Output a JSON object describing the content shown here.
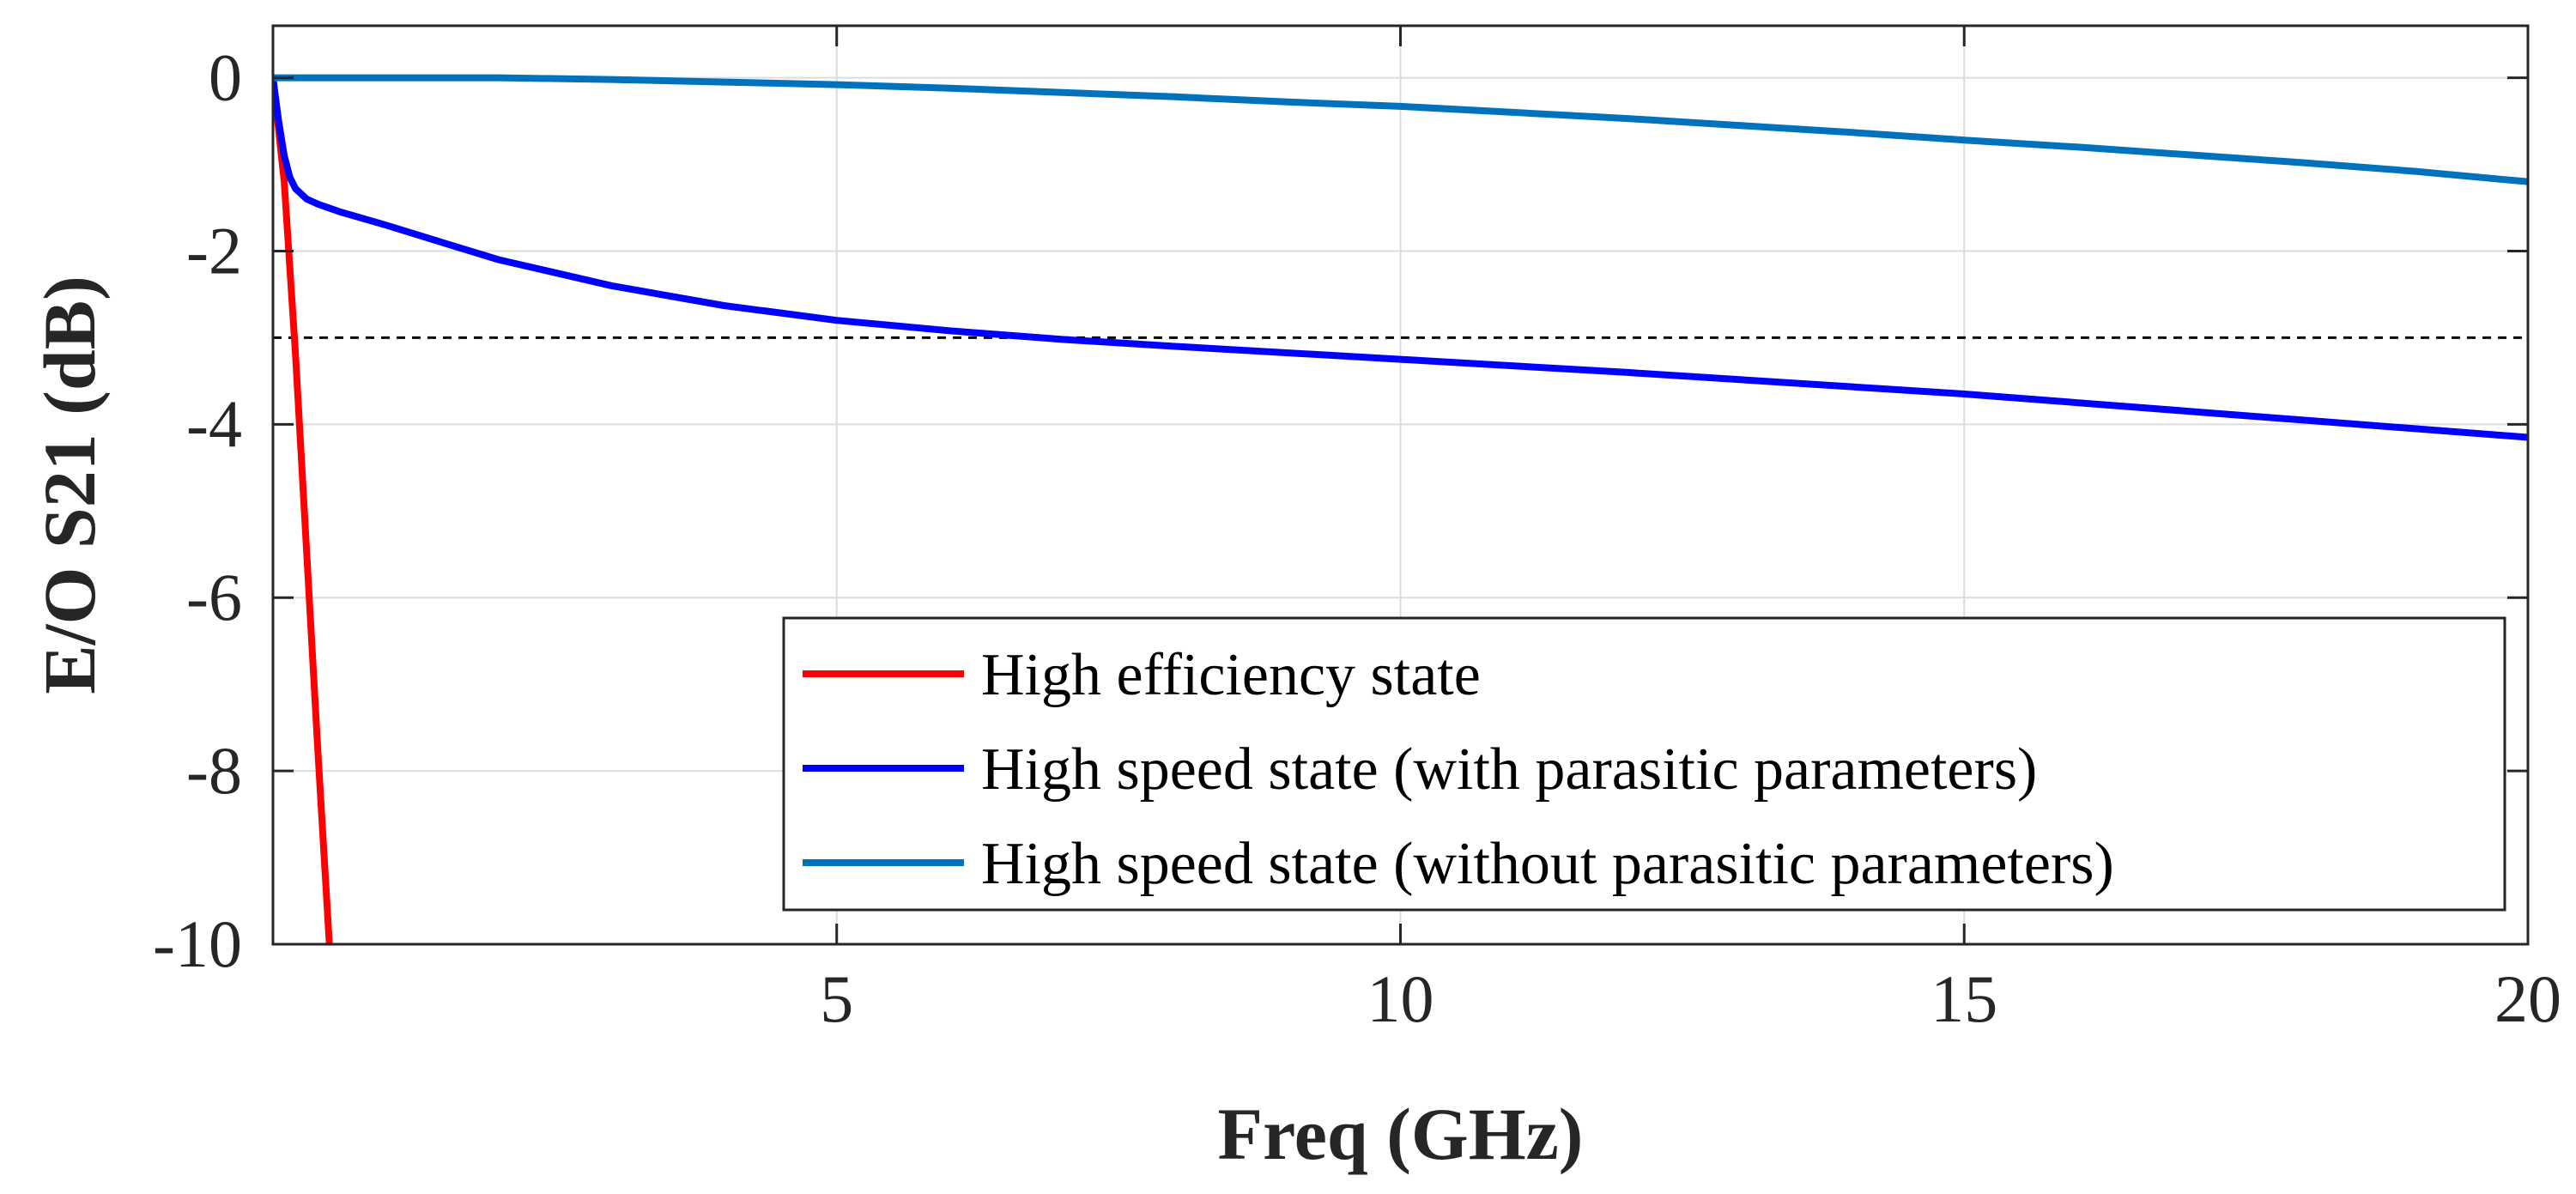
{
  "chart_data": {
    "type": "line",
    "title": "",
    "xlabel": "Freq (GHz)",
    "ylabel": "E/O S21 (dB)",
    "xlim": [
      0,
      20
    ],
    "ylim": [
      -10,
      0.6
    ],
    "xticks": [
      5,
      10,
      15,
      20
    ],
    "xtick_labels": [
      "5",
      "10",
      "15",
      "20"
    ],
    "yticks": [
      0,
      -2,
      -4,
      -6,
      -8,
      -10
    ],
    "ytick_labels": [
      "0",
      "-2",
      "-4",
      "-6",
      "-8",
      "-10"
    ],
    "grid": true,
    "legend_position": "bottom-right",
    "reference_line": {
      "y": -3,
      "style": "dashed"
    },
    "series": [
      {
        "name": "High efficiency state",
        "color": "#ff0000",
        "x": [
          0,
          0.1,
          0.2,
          0.3,
          0.4,
          0.5
        ],
        "y": [
          0,
          -1.2,
          -3.2,
          -5.5,
          -7.8,
          -10
        ]
      },
      {
        "name": "High speed state (with parasitic parameters)",
        "color": "#0000ff",
        "x": [
          0,
          0.05,
          0.1,
          0.15,
          0.2,
          0.3,
          0.4,
          0.6,
          1,
          1.5,
          2,
          3,
          4,
          5,
          6,
          7,
          8,
          10,
          12,
          15,
          17,
          20
        ],
        "y": [
          0,
          -0.5,
          -0.9,
          -1.15,
          -1.28,
          -1.4,
          -1.46,
          -1.55,
          -1.7,
          -1.9,
          -2.1,
          -2.4,
          -2.63,
          -2.8,
          -2.92,
          -3.02,
          -3.1,
          -3.25,
          -3.4,
          -3.65,
          -3.85,
          -4.15
        ]
      },
      {
        "name": "High speed state (without parasitic parameters)",
        "color": "#0072bd",
        "x": [
          0,
          1,
          2,
          3,
          4,
          5,
          6,
          7,
          8,
          9,
          10,
          11,
          12,
          13,
          14,
          15,
          16,
          17,
          18,
          19,
          20
        ],
        "y": [
          0,
          0,
          0,
          -0.02,
          -0.05,
          -0.08,
          -0.12,
          -0.17,
          -0.22,
          -0.28,
          -0.33,
          -0.4,
          -0.47,
          -0.55,
          -0.63,
          -0.72,
          -0.8,
          -0.89,
          -0.98,
          -1.08,
          -1.2
        ]
      }
    ]
  }
}
